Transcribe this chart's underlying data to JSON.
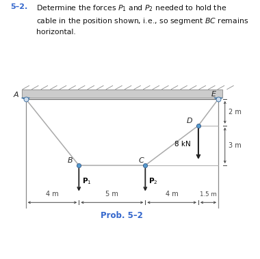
{
  "bg_color": "#ffffff",
  "cable_color": "#aaaaaa",
  "node_color": "#5599cc",
  "support_color": "#7aabcc",
  "support_edge_color": "#336699",
  "ceiling_color": "#cccccc",
  "ceiling_edge_color": "#999999",
  "wall_color": "#aaaaaa",
  "dim_color": "#444444",
  "label_color": "#222222",
  "arrow_color": "#222222",
  "blue_text_color": "#3366cc",
  "A": [
    0.0,
    0.0
  ],
  "E": [
    14.5,
    0.0
  ],
  "B": [
    4.0,
    -5.0
  ],
  "C": [
    9.0,
    -5.0
  ],
  "D": [
    13.0,
    -2.0
  ],
  "xlim": [
    -1.8,
    17.5
  ],
  "ylim": [
    -10.5,
    2.0
  ],
  "figsize": [
    3.8,
    3.79
  ],
  "dpi": 100,
  "title_number": "5–2.",
  "title_body": "  Determine the forces $P_1$ and $P_2$ needed to hold the cable in the position shown, i.e., so segment $BC$ remains horizontal.",
  "prob_label": "Prob. 5–2"
}
